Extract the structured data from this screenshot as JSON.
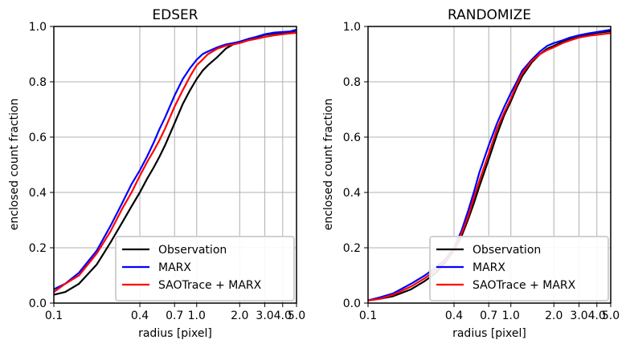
{
  "chart_data": [
    {
      "type": "line",
      "title": "EDSER",
      "xlabel": "radius [pixel]",
      "ylabel": "enclosed count fraction",
      "xscale": "log",
      "xlim": [
        0.1,
        5.0
      ],
      "ylim": [
        0.0,
        1.0
      ],
      "xticks": [
        0.1,
        0.4,
        0.7,
        1.0,
        2.0,
        3.0,
        4.0,
        5.0
      ],
      "xtick_labels": [
        "0.1",
        "0.4",
        "0.7",
        "1.0",
        "2.0",
        "3.0",
        "4.0",
        "5.0"
      ],
      "yticks": [
        0.0,
        0.2,
        0.4,
        0.6,
        0.8,
        1.0
      ],
      "ytick_labels": [
        "0.0",
        "0.2",
        "0.4",
        "0.6",
        "0.8",
        "1.0"
      ],
      "grid": true,
      "legend_position": "lower right",
      "series": [
        {
          "name": "Observation",
          "color": "#000000",
          "x": [
            0.1,
            0.12,
            0.15,
            0.2,
            0.25,
            0.3,
            0.35,
            0.4,
            0.45,
            0.5,
            0.55,
            0.6,
            0.7,
            0.8,
            0.9,
            1.0,
            1.1,
            1.2,
            1.4,
            1.6,
            1.8,
            2.0,
            2.3,
            2.6,
            3.0,
            3.5,
            4.0,
            4.5,
            5.0
          ],
          "y": [
            0.03,
            0.04,
            0.07,
            0.14,
            0.22,
            0.29,
            0.35,
            0.4,
            0.45,
            0.49,
            0.53,
            0.57,
            0.65,
            0.72,
            0.77,
            0.81,
            0.84,
            0.86,
            0.89,
            0.92,
            0.935,
            0.945,
            0.955,
            0.96,
            0.97,
            0.975,
            0.978,
            0.98,
            0.985
          ]
        },
        {
          "name": "MARX",
          "color": "#0000ff",
          "x": [
            0.1,
            0.12,
            0.15,
            0.2,
            0.25,
            0.3,
            0.35,
            0.4,
            0.45,
            0.5,
            0.55,
            0.6,
            0.7,
            0.8,
            0.9,
            1.0,
            1.1,
            1.2,
            1.4,
            1.6,
            1.8,
            2.0,
            2.3,
            2.6,
            3.0,
            3.5,
            4.0,
            4.5,
            5.0
          ],
          "y": [
            0.05,
            0.07,
            0.11,
            0.19,
            0.28,
            0.36,
            0.43,
            0.48,
            0.53,
            0.58,
            0.63,
            0.67,
            0.75,
            0.81,
            0.85,
            0.88,
            0.9,
            0.91,
            0.925,
            0.935,
            0.94,
            0.945,
            0.955,
            0.962,
            0.972,
            0.978,
            0.98,
            0.982,
            0.988
          ]
        },
        {
          "name": "SAOTrace + MARX",
          "color": "#ff0000",
          "x": [
            0.1,
            0.12,
            0.15,
            0.2,
            0.25,
            0.3,
            0.35,
            0.4,
            0.45,
            0.5,
            0.55,
            0.6,
            0.7,
            0.8,
            0.9,
            1.0,
            1.1,
            1.2,
            1.4,
            1.6,
            1.8,
            2.0,
            2.3,
            2.6,
            3.0,
            3.5,
            4.0,
            4.5,
            5.0
          ],
          "y": [
            0.04,
            0.07,
            0.1,
            0.18,
            0.26,
            0.34,
            0.4,
            0.46,
            0.51,
            0.55,
            0.59,
            0.63,
            0.71,
            0.77,
            0.82,
            0.86,
            0.88,
            0.9,
            0.92,
            0.93,
            0.935,
            0.94,
            0.95,
            0.955,
            0.962,
            0.968,
            0.972,
            0.975,
            0.977
          ]
        }
      ]
    },
    {
      "type": "line",
      "title": "RANDOMIZE",
      "xlabel": "radius [pixel]",
      "ylabel": "enclosed count fraction",
      "xscale": "log",
      "xlim": [
        0.1,
        5.0
      ],
      "ylim": [
        0.0,
        1.0
      ],
      "xticks": [
        0.1,
        0.4,
        0.7,
        1.0,
        2.0,
        3.0,
        4.0,
        5.0
      ],
      "xtick_labels": [
        "0.1",
        "0.4",
        "0.7",
        "1.0",
        "2.0",
        "3.0",
        "4.0",
        "5.0"
      ],
      "yticks": [
        0.0,
        0.2,
        0.4,
        0.6,
        0.8,
        1.0
      ],
      "ytick_labels": [
        "0.0",
        "0.2",
        "0.4",
        "0.6",
        "0.8",
        "1.0"
      ],
      "grid": true,
      "legend_position": "lower right",
      "series": [
        {
          "name": "Observation",
          "color": "#000000",
          "x": [
            0.1,
            0.12,
            0.15,
            0.2,
            0.25,
            0.3,
            0.35,
            0.4,
            0.45,
            0.5,
            0.55,
            0.6,
            0.7,
            0.8,
            0.9,
            1.0,
            1.1,
            1.2,
            1.4,
            1.6,
            1.8,
            2.0,
            2.3,
            2.6,
            3.0,
            3.5,
            4.0,
            4.5,
            5.0
          ],
          "y": [
            0.01,
            0.015,
            0.025,
            0.05,
            0.08,
            0.11,
            0.15,
            0.19,
            0.24,
            0.3,
            0.36,
            0.42,
            0.52,
            0.61,
            0.68,
            0.73,
            0.78,
            0.82,
            0.87,
            0.9,
            0.92,
            0.93,
            0.945,
            0.955,
            0.965,
            0.972,
            0.977,
            0.98,
            0.983
          ]
        },
        {
          "name": "MARX",
          "color": "#0000ff",
          "x": [
            0.1,
            0.12,
            0.15,
            0.2,
            0.25,
            0.3,
            0.35,
            0.4,
            0.45,
            0.5,
            0.55,
            0.6,
            0.7,
            0.8,
            0.9,
            1.0,
            1.1,
            1.2,
            1.4,
            1.6,
            1.8,
            2.0,
            2.3,
            2.6,
            3.0,
            3.5,
            4.0,
            4.5,
            5.0
          ],
          "y": [
            0.01,
            0.02,
            0.035,
            0.07,
            0.1,
            0.13,
            0.16,
            0.2,
            0.26,
            0.33,
            0.4,
            0.47,
            0.57,
            0.65,
            0.71,
            0.76,
            0.8,
            0.84,
            0.88,
            0.91,
            0.93,
            0.94,
            0.95,
            0.96,
            0.968,
            0.975,
            0.98,
            0.984,
            0.988
          ]
        },
        {
          "name": "SAOTrace + MARX",
          "color": "#ff0000",
          "x": [
            0.1,
            0.12,
            0.15,
            0.2,
            0.25,
            0.3,
            0.35,
            0.4,
            0.45,
            0.5,
            0.55,
            0.6,
            0.7,
            0.8,
            0.9,
            1.0,
            1.1,
            1.2,
            1.4,
            1.6,
            1.8,
            2.0,
            2.3,
            2.6,
            3.0,
            3.5,
            4.0,
            4.5,
            5.0
          ],
          "y": [
            0.01,
            0.015,
            0.03,
            0.06,
            0.09,
            0.12,
            0.155,
            0.19,
            0.25,
            0.31,
            0.38,
            0.44,
            0.54,
            0.63,
            0.69,
            0.74,
            0.79,
            0.83,
            0.875,
            0.9,
            0.915,
            0.925,
            0.94,
            0.95,
            0.96,
            0.966,
            0.97,
            0.973,
            0.976
          ]
        }
      ]
    }
  ]
}
